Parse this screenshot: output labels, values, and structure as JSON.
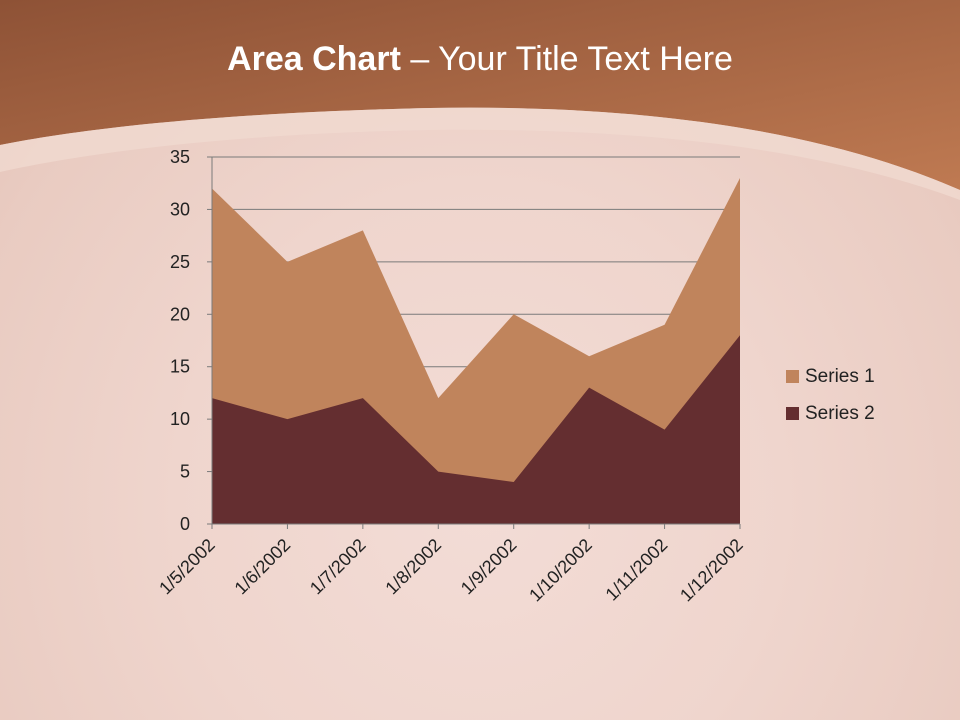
{
  "slide": {
    "title_bold": "Area Chart",
    "title_rest": " – Your Title Text Here"
  },
  "colors": {
    "series1": "#c0845c",
    "series2": "#642e30",
    "header": "#a2613f"
  },
  "chart_data": {
    "type": "area",
    "categories": [
      "1/5/2002",
      "1/6/2002",
      "1/7/2002",
      "1/8/2002",
      "1/9/2002",
      "1/10/2002",
      "1/11/2002",
      "1/12/2002"
    ],
    "series": [
      {
        "name": "Series 1",
        "values": [
          32,
          25,
          28,
          12,
          20,
          16,
          19,
          33
        ]
      },
      {
        "name": "Series 2",
        "values": [
          12,
          10,
          12,
          5,
          4,
          13,
          9,
          18
        ]
      }
    ],
    "ylim": [
      0,
      35
    ],
    "yticks": [
      "0",
      "5",
      "10",
      "15",
      "20",
      "25",
      "30",
      "35"
    ],
    "grid": true,
    "legend": "right",
    "stacked": false
  }
}
